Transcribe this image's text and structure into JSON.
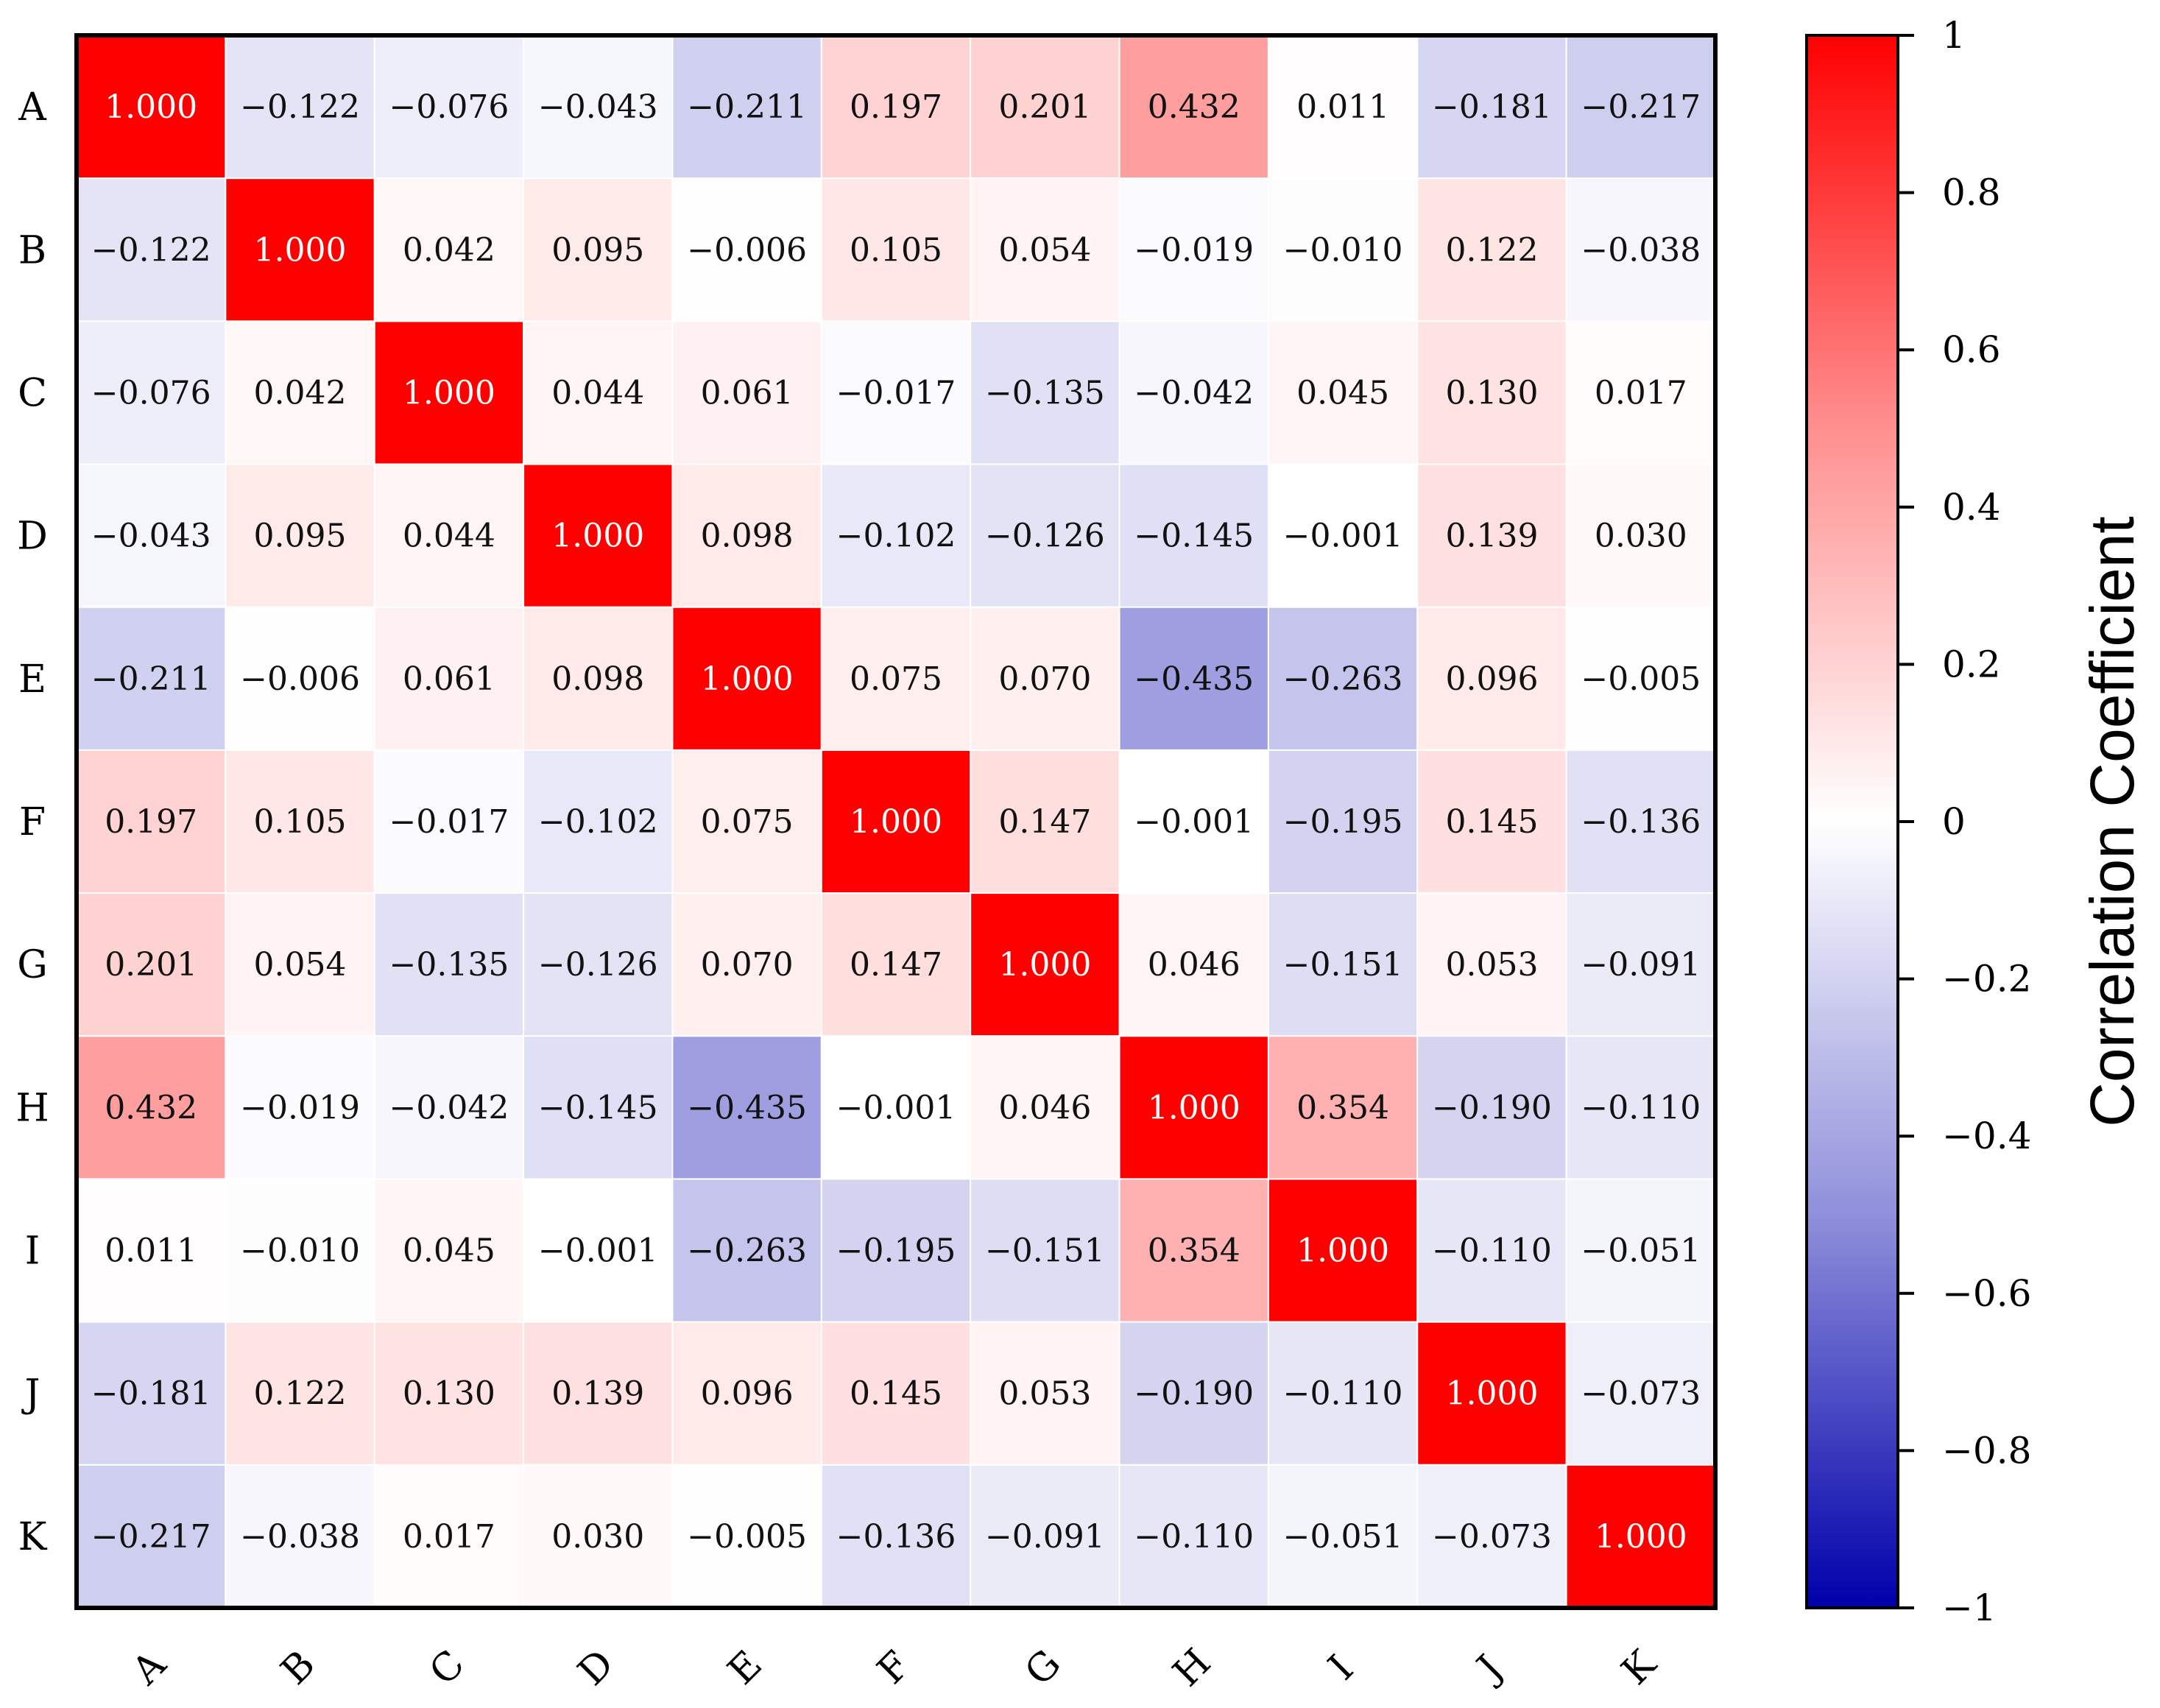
{
  "chart_data": {
    "type": "heatmap",
    "title": "",
    "row_labels": [
      "A",
      "B",
      "C",
      "D",
      "E",
      "F",
      "G",
      "H",
      "I",
      "J",
      "K"
    ],
    "col_labels": [
      "A",
      "B",
      "C",
      "D",
      "E",
      "F",
      "G",
      "H",
      "I",
      "J",
      "K"
    ],
    "values": [
      [
        1.0,
        -0.122,
        -0.076,
        -0.043,
        -0.211,
        0.197,
        0.201,
        0.432,
        0.011,
        -0.181,
        -0.217
      ],
      [
        -0.122,
        1.0,
        0.042,
        0.095,
        -0.006,
        0.105,
        0.054,
        -0.019,
        -0.01,
        0.122,
        -0.038
      ],
      [
        -0.076,
        0.042,
        1.0,
        0.044,
        0.061,
        -0.017,
        -0.135,
        -0.042,
        0.045,
        0.13,
        0.017
      ],
      [
        -0.043,
        0.095,
        0.044,
        1.0,
        0.098,
        -0.102,
        -0.126,
        -0.145,
        -0.001,
        0.139,
        0.03
      ],
      [
        -0.211,
        -0.006,
        0.061,
        0.098,
        1.0,
        0.075,
        0.07,
        -0.435,
        -0.263,
        0.096,
        -0.005
      ],
      [
        0.197,
        0.105,
        -0.017,
        -0.102,
        0.075,
        1.0,
        0.147,
        -0.001,
        -0.195,
        0.145,
        -0.136
      ],
      [
        0.201,
        0.054,
        -0.135,
        -0.126,
        0.07,
        0.147,
        1.0,
        0.046,
        -0.151,
        0.053,
        -0.091
      ],
      [
        0.432,
        -0.019,
        -0.042,
        -0.145,
        -0.435,
        -0.001,
        0.046,
        1.0,
        0.354,
        -0.19,
        -0.11
      ],
      [
        0.011,
        -0.01,
        0.045,
        -0.001,
        -0.263,
        -0.195,
        -0.151,
        0.354,
        1.0,
        -0.11,
        -0.051
      ],
      [
        -0.181,
        0.122,
        0.13,
        0.139,
        0.096,
        0.145,
        0.053,
        -0.19,
        -0.11,
        1.0,
        -0.073
      ],
      [
        -0.217,
        -0.038,
        0.017,
        0.03,
        -0.005,
        -0.136,
        -0.091,
        -0.11,
        -0.051,
        -0.073,
        1.0
      ]
    ],
    "value_decimals": 3,
    "colorbar": {
      "label": "Correlation Coefficient",
      "range": [
        -1,
        1
      ],
      "ticks": [
        1,
        0.8,
        0.6,
        0.4,
        0.2,
        0,
        -0.2,
        -0.4,
        -0.6,
        -0.8,
        -1
      ],
      "tick_labels": [
        "1",
        "0.8",
        "0.6",
        "0.4",
        "0.2",
        "0",
        "−0.2",
        "−0.4",
        "−0.6",
        "−0.8",
        "−1"
      ],
      "colors": {
        "low": "#0000aa",
        "mid_low": "#8f8fdb",
        "mid": "#ffffff",
        "mid_high": "#ff8f8f",
        "high": "#ff0000"
      }
    },
    "cell_text_colors": {
      "diagonal": "#ffffff",
      "default": "#111111"
    },
    "grid_color": "#ffffff",
    "frame_color": "#000000"
  }
}
